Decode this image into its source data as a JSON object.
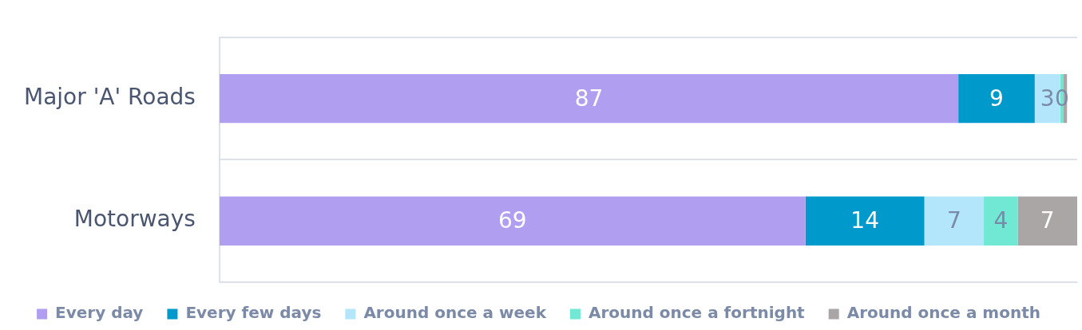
{
  "chart_data": {
    "type": "bar",
    "orientation": "horizontal",
    "stacked": true,
    "categories": [
      "Major 'A' Roads",
      "Motorways"
    ],
    "xlim": [
      0,
      101
    ],
    "tick_labels": "y",
    "grid": "y",
    "legend": "bottom",
    "series": [
      {
        "name": "Every day",
        "color": "#b09ff0",
        "values": [
          87,
          69
        ],
        "value_labels": [
          "87",
          "69"
        ]
      },
      {
        "name": "Every few days",
        "color": "#0099cc",
        "values": [
          9,
          14
        ],
        "value_labels": [
          "9",
          "14"
        ]
      },
      {
        "name": "Around once a week",
        "color": "#b3e6fa",
        "values": [
          3,
          7
        ],
        "value_labels": [
          "3",
          "7"
        ]
      },
      {
        "name": "Around once a fortnight",
        "color": "#70e8d4",
        "values": [
          0.4,
          4
        ],
        "value_labels": [
          "0",
          "4"
        ]
      },
      {
        "name": "Around once a month",
        "color": "#aaa6a6",
        "values": [
          0.4,
          7
        ],
        "value_labels": [
          null,
          "7"
        ]
      }
    ]
  }
}
